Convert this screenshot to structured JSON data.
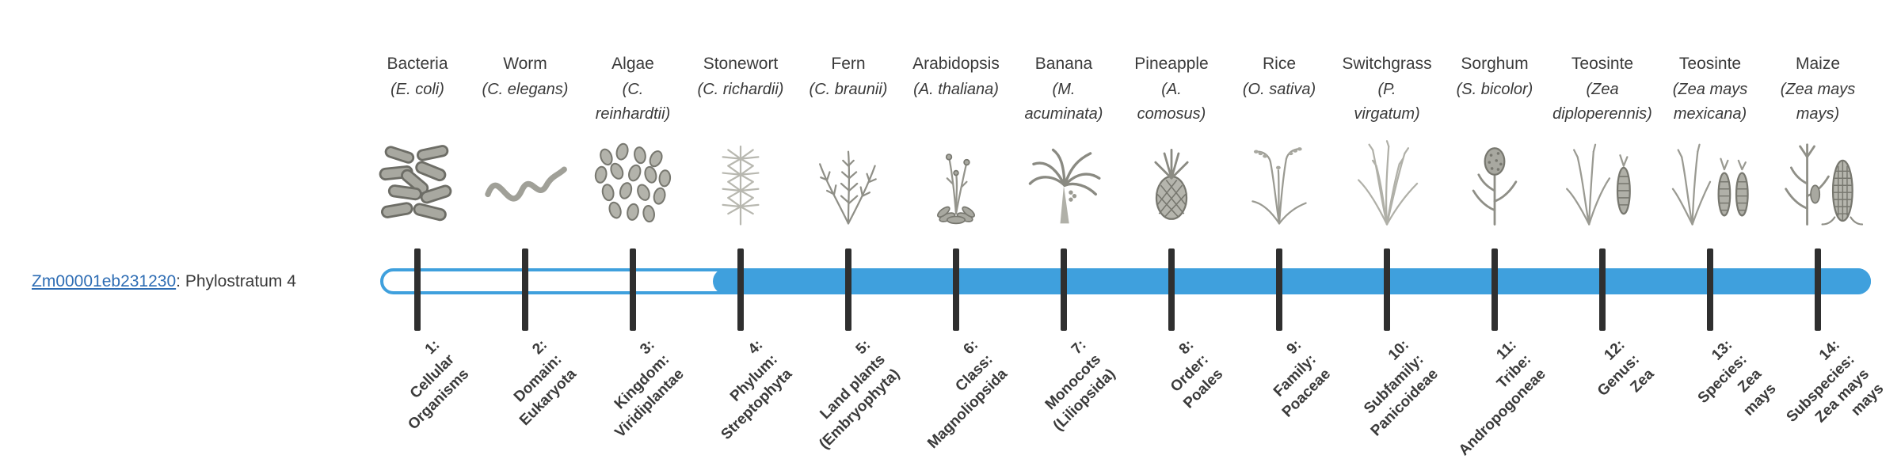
{
  "page": {
    "background": "#ffffff"
  },
  "gene": {
    "id": "Zm00001eb231230",
    "suffix": ": Phylostratum 4"
  },
  "bar": {
    "fill_color": "#3fa0dd",
    "outline_color": "#3fa0dd",
    "tick_color": "#2f2f2f",
    "filled_from_stratum": 4,
    "total_strata": 14
  },
  "columns": [
    {
      "common": "Bacteria",
      "sci_lines": [
        "(E. coli)"
      ],
      "icon": "bacteria",
      "tick_label_lines": [
        "1:",
        "Cellular",
        "Organisms"
      ]
    },
    {
      "common": "Worm",
      "sci_lines": [
        "(C. elegans)"
      ],
      "icon": "worm",
      "tick_label_lines": [
        "2:",
        "Domain:",
        "Eukaryota"
      ]
    },
    {
      "common": "Algae",
      "sci_lines": [
        "(C.",
        "reinhardtii)"
      ],
      "icon": "algae",
      "tick_label_lines": [
        "3:",
        "Kingdom:",
        "Viridiplantae"
      ]
    },
    {
      "common": "Stonewort",
      "sci_lines": [
        "(C. richardii)"
      ],
      "icon": "stonewort",
      "tick_label_lines": [
        "4:",
        "Phylum:",
        "Streptophyta"
      ]
    },
    {
      "common": "Fern",
      "sci_lines": [
        "(C. braunii)"
      ],
      "icon": "fern",
      "tick_label_lines": [
        "5:",
        "Land plants",
        "(Embryophyta)"
      ]
    },
    {
      "common": "Arabidopsis",
      "sci_lines": [
        "(A. thaliana)"
      ],
      "icon": "arabidopsis",
      "tick_label_lines": [
        "6:",
        "Class:",
        "Magnoliopsida"
      ]
    },
    {
      "common": "Banana",
      "sci_lines": [
        "(M.",
        "acuminata)"
      ],
      "icon": "banana",
      "tick_label_lines": [
        "7:",
        "Monocots",
        "(Liliopsida)"
      ]
    },
    {
      "common": "Pineapple",
      "sci_lines": [
        "(A.",
        "comosus)"
      ],
      "icon": "pineapple",
      "tick_label_lines": [
        "8:",
        "Order:",
        "Poales"
      ]
    },
    {
      "common": "Rice",
      "sci_lines": [
        "(O. sativa)"
      ],
      "icon": "rice",
      "tick_label_lines": [
        "9:",
        "Family:",
        "Poaceae"
      ]
    },
    {
      "common": "Switchgrass",
      "sci_lines": [
        "(P.",
        "virgatum)"
      ],
      "icon": "switchgrass",
      "tick_label_lines": [
        "10:",
        "Subfamily:",
        "Panicoideae"
      ]
    },
    {
      "common": "Sorghum",
      "sci_lines": [
        "(S. bicolor)"
      ],
      "icon": "sorghum",
      "tick_label_lines": [
        "11:",
        "Tribe:",
        "Andropogoneae"
      ]
    },
    {
      "common": "Teosinte",
      "sci_lines": [
        "(Zea",
        "diploperennis)"
      ],
      "icon": "teosinte",
      "tick_label_lines": [
        "12:",
        "Genus:",
        "Zea"
      ]
    },
    {
      "common": "Teosinte",
      "sci_lines": [
        "(Zea mays",
        "mexicana)"
      ],
      "icon": "teosinte2",
      "tick_label_lines": [
        "13:",
        "Species:",
        "Zea",
        "mays"
      ]
    },
    {
      "common": "Maize",
      "sci_lines": [
        "(Zea mays",
        "mays)"
      ],
      "icon": "maize",
      "tick_label_lines": [
        "14:",
        "Subspecies:",
        "Zea mays",
        "mays"
      ]
    }
  ]
}
